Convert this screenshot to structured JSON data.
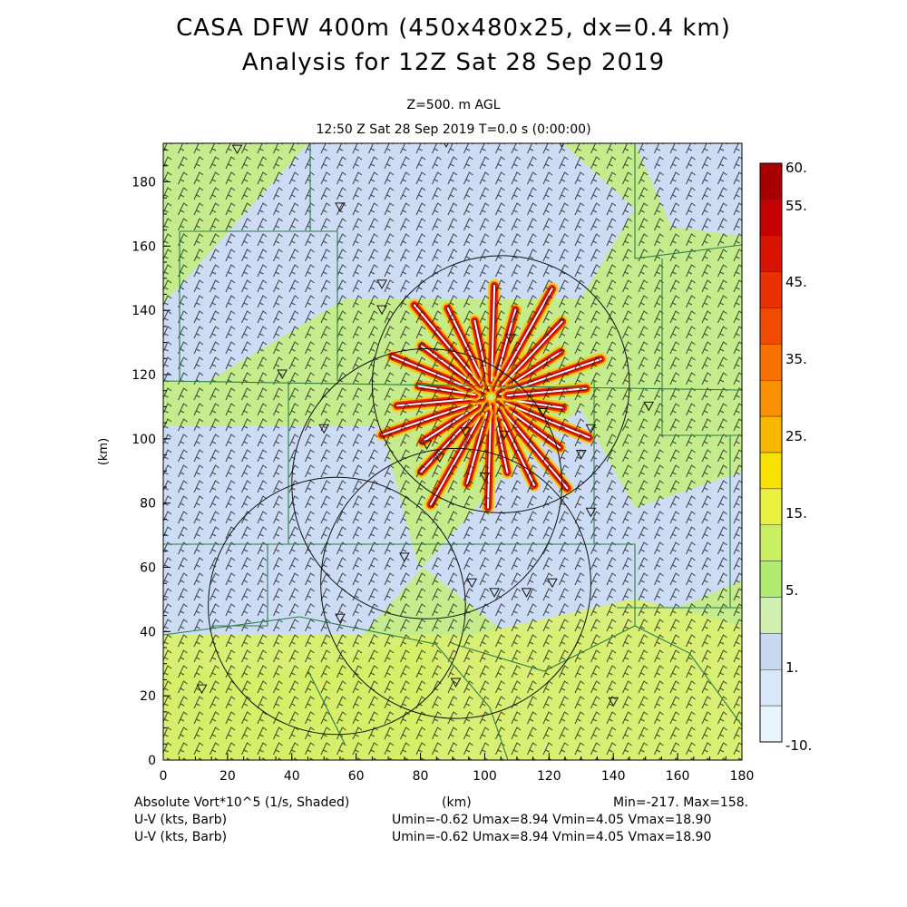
{
  "header": {
    "title_line1": "CASA DFW 400m (450x480x25, dx=0.4 km)",
    "title_line2": "Analysis for 12Z Sat 28 Sep 2019",
    "level": "Z=500. m AGL",
    "time_line": "12:50 Z Sat 28 Sep 2019    T=0.0 s (0:00:00)"
  },
  "footer": {
    "field_label": "Absolute Vort*10^5 (1/s, Shaded)",
    "x_unit": "(km)",
    "minmax": "Min=-217. Max=158.",
    "wind1_label": "U-V (kts, Barb)",
    "wind1_stats": "Umin=-0.62 Umax=8.94 Vmin=4.05 Vmax=18.90",
    "wind2_label": "U-V (kts, Barb)",
    "wind2_stats": "Umin=-0.62 Umax=8.94 Vmin=4.05 Vmax=18.90"
  },
  "chart_data": {
    "type": "heatmap",
    "field": "Absolute Vort*10^5 (1/s, Shaded)",
    "xlabel": "(km)",
    "ylabel": "(km)",
    "xlim": [
      0,
      180
    ],
    "ylim": [
      0,
      192
    ],
    "xticks": [
      0,
      20,
      40,
      60,
      80,
      100,
      120,
      140,
      160,
      180
    ],
    "yticks": [
      0,
      20,
      40,
      60,
      80,
      100,
      120,
      140,
      160,
      180
    ],
    "min": -217,
    "max": 158,
    "colorbar": {
      "labels": [
        "60.",
        "55.",
        "45.",
        "35.",
        "25.",
        "15.",
        "5.",
        "1.",
        "-10."
      ],
      "colors": [
        "#a80000",
        "#c40000",
        "#d81400",
        "#e83000",
        "#f04a00",
        "#f87000",
        "#f89000",
        "#f8b800",
        "#f8e000",
        "#e8f040",
        "#c8f060",
        "#b0ec70",
        "#d0f0b0",
        "#c8d8f0",
        "#d8e8f8",
        "#e8f4fc"
      ]
    },
    "radar_circles_km": [
      {
        "cx": 105,
        "cy": 117,
        "r": 40
      },
      {
        "cx": 82,
        "cy": 86,
        "r": 42
      },
      {
        "cx": 91,
        "cy": 55,
        "r": 42
      },
      {
        "cx": 54,
        "cy": 48,
        "r": 40
      }
    ],
    "wind_barbs": {
      "u_range": [
        -0.62,
        8.94
      ],
      "v_range": [
        4.05,
        18.9
      ],
      "units": "kts"
    },
    "colors": {
      "background_green": "#c4ec8c",
      "light_blue": "#ccdcf4",
      "yellow_green": "#dcf070",
      "border": "#2e7d46"
    }
  }
}
